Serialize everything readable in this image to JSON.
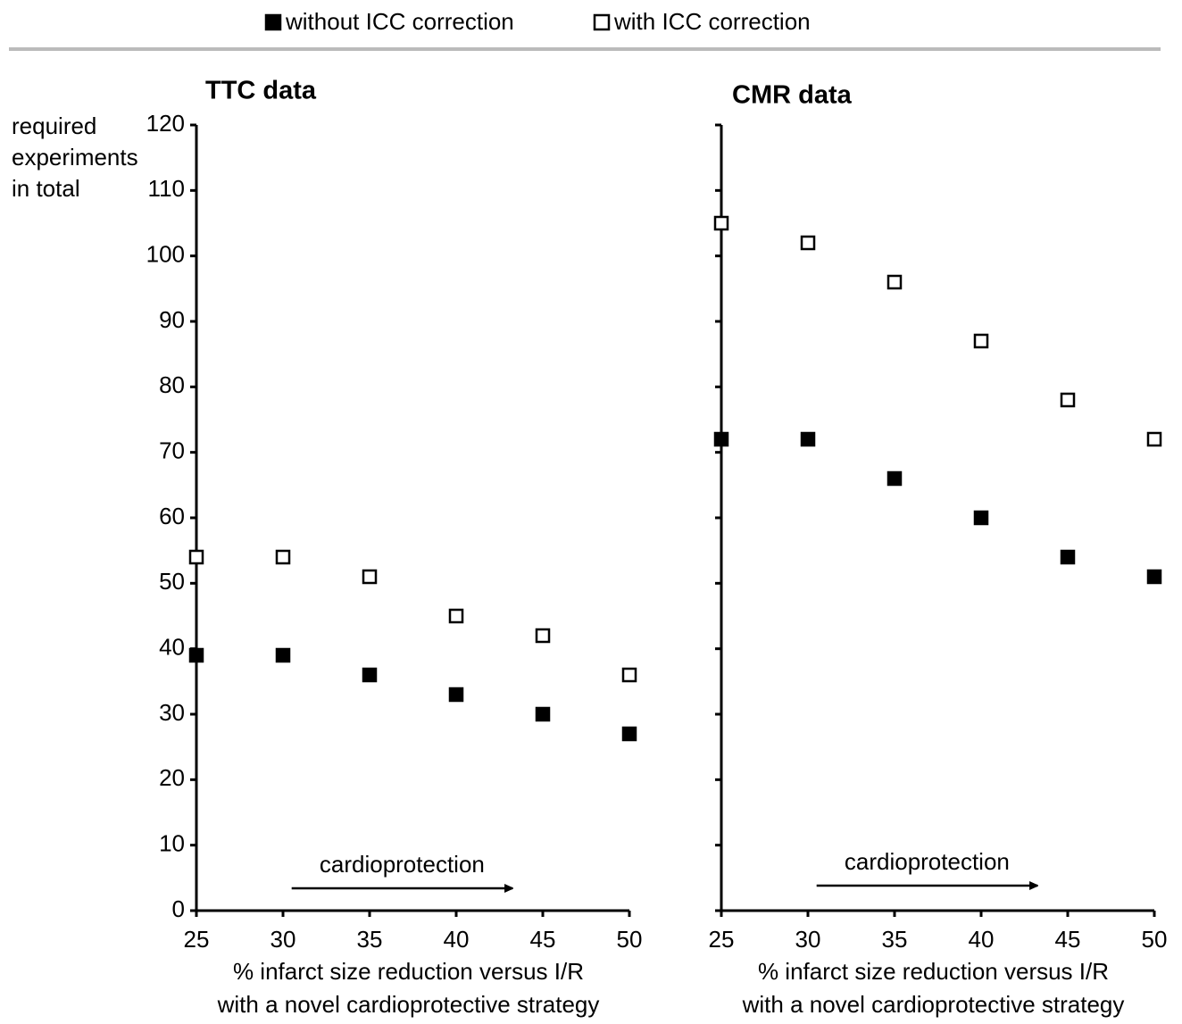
{
  "chart_data": [
    {
      "type": "scatter",
      "title": "TTC data",
      "y_label": [
        "required",
        "experiments",
        "in total"
      ],
      "x_label": [
        "% infarct size reduction versus I/R",
        "with a novel cardioprotective strategy"
      ],
      "annotation": "cardioprotection",
      "x": [
        25,
        30,
        35,
        40,
        45,
        50
      ],
      "series": [
        {
          "name": "without ICC correction",
          "color": "#000000",
          "values": [
            39,
            39,
            36,
            33,
            30,
            27
          ]
        },
        {
          "name": "with ICC correction",
          "color": "#ffffff",
          "values": [
            54,
            54,
            51,
            45,
            42,
            36
          ]
        }
      ],
      "xlim": [
        25,
        50
      ],
      "xticks": [
        25,
        30,
        35,
        40,
        45,
        50
      ],
      "ylim": [
        0,
        120
      ],
      "yticks": [
        0,
        10,
        20,
        30,
        40,
        50,
        60,
        70,
        80,
        90,
        100,
        110,
        120
      ],
      "ytick_labels": true,
      "legend": "top"
    },
    {
      "type": "scatter",
      "title": "CMR data",
      "x_label": [
        "% infarct size reduction versus I/R",
        "with a novel cardioprotective strategy"
      ],
      "annotation": "cardioprotection",
      "x": [
        25,
        30,
        35,
        40,
        45,
        50
      ],
      "series": [
        {
          "name": "without ICC correction",
          "color": "#000000",
          "values": [
            72,
            72,
            66,
            60,
            54,
            51
          ]
        },
        {
          "name": "with ICC correction",
          "color": "#ffffff",
          "values": [
            105,
            102,
            96,
            87,
            78,
            72
          ]
        }
      ],
      "xlim": [
        25,
        50
      ],
      "xticks": [
        25,
        30,
        35,
        40,
        45,
        50
      ],
      "ylim": [
        0,
        120
      ],
      "yticks": [
        0,
        10,
        20,
        30,
        40,
        50,
        60,
        70,
        80,
        90,
        100,
        110,
        120
      ],
      "ytick_labels": false
    }
  ]
}
